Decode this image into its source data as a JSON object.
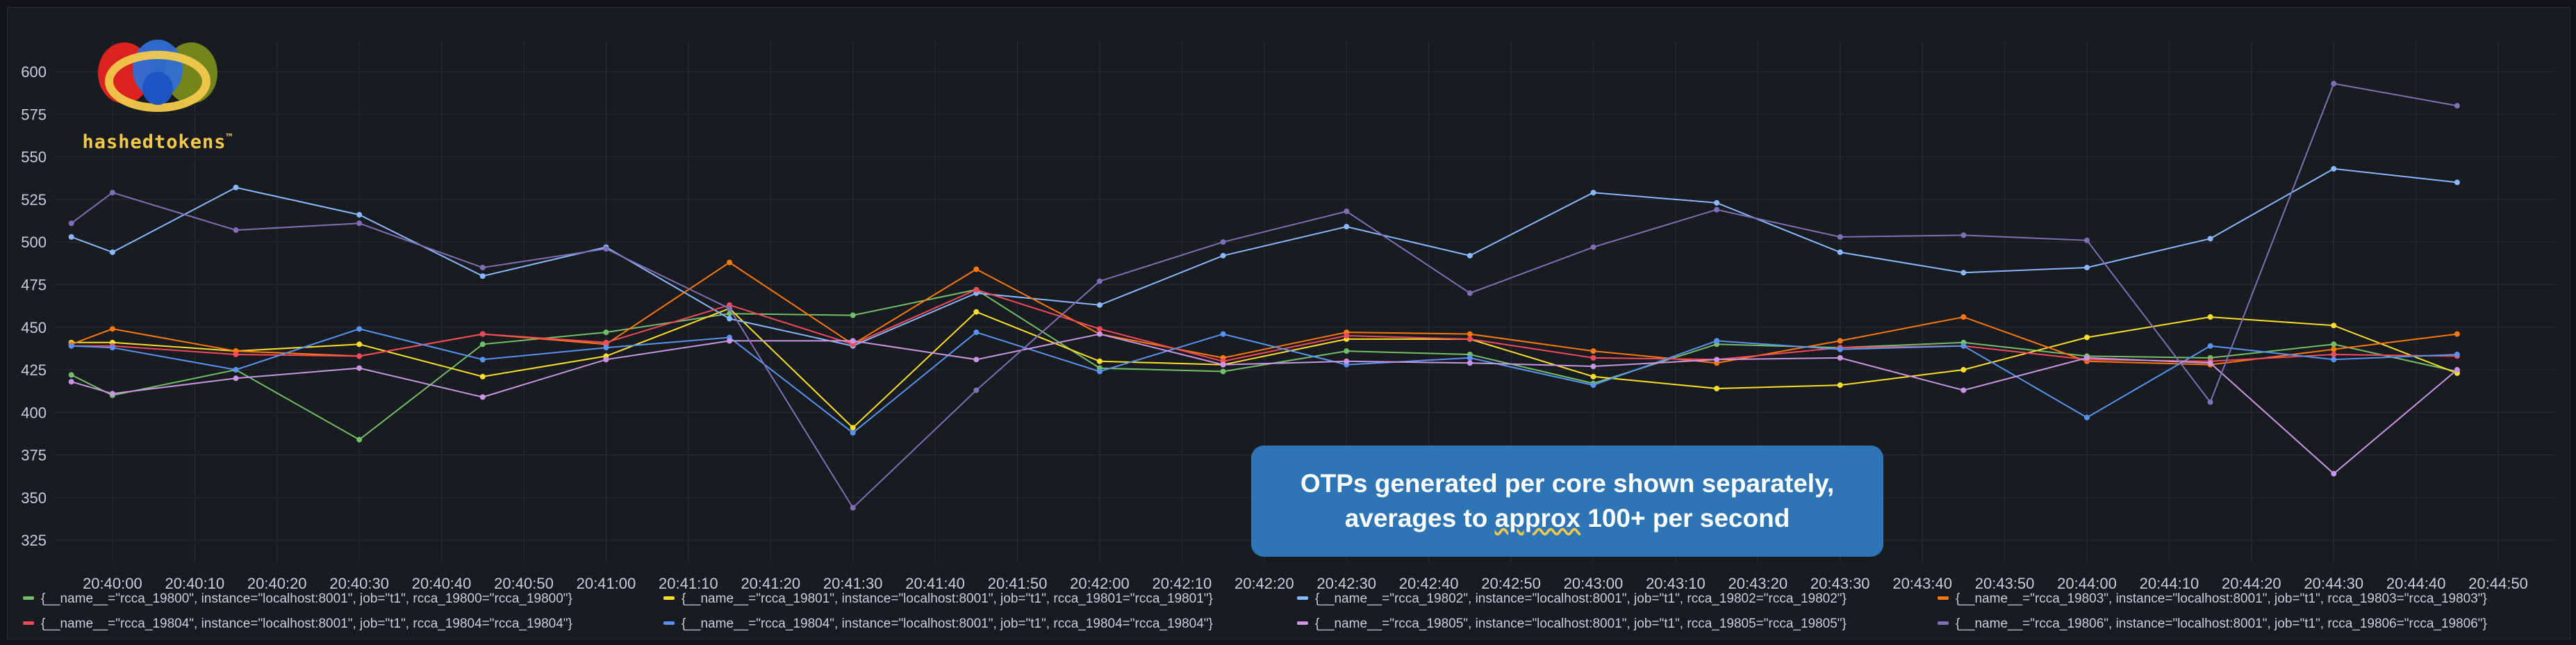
{
  "logo": {
    "text": "hashedtokens",
    "trademark": "™"
  },
  "callout": {
    "line1": "OTPs generated per core shown separately,",
    "line2_pre": "averages to ",
    "line2_mark": "approx",
    "line2_post": " 100+ per second"
  },
  "chart_data": {
    "type": "line",
    "title": "",
    "xlabel": "",
    "ylabel": "",
    "ylim": [
      312,
      618
    ],
    "y_ticks": [
      325,
      350,
      375,
      400,
      425,
      450,
      475,
      500,
      525,
      550,
      575,
      600
    ],
    "x_ticks": [
      "20:40:00",
      "20:40:10",
      "20:40:20",
      "20:40:30",
      "20:40:40",
      "20:40:50",
      "20:41:00",
      "20:41:10",
      "20:41:20",
      "20:41:30",
      "20:41:40",
      "20:41:50",
      "20:42:00",
      "20:42:10",
      "20:42:20",
      "20:42:30",
      "20:42:40",
      "20:42:50",
      "20:43:00",
      "20:43:10",
      "20:43:20",
      "20:43:30",
      "20:43:40",
      "20:43:50",
      "20:44:00",
      "20:44:10",
      "20:44:20",
      "20:44:30",
      "20:44:40",
      "20:44:50"
    ],
    "x_tick_seconds": [
      0,
      10,
      20,
      30,
      40,
      50,
      60,
      70,
      80,
      90,
      100,
      110,
      120,
      130,
      140,
      150,
      160,
      170,
      180,
      190,
      200,
      210,
      220,
      230,
      240,
      250,
      260,
      270,
      280,
      290
    ],
    "x_range_seconds": [
      -7,
      297
    ],
    "x": [
      -5,
      0,
      15,
      30,
      45,
      60,
      75,
      90,
      105,
      120,
      135,
      150,
      165,
      180,
      195,
      210,
      225,
      240,
      255,
      270,
      285
    ],
    "series": [
      {
        "name": "{__name__=\"rcca_19800\", instance=\"localhost:8001\", job=\"t1\", rcca_19800=\"rcca_19800\"}",
        "color": "#73bf69",
        "values": [
          422,
          410,
          425,
          384,
          440,
          447,
          458,
          457,
          472,
          426,
          424,
          436,
          434,
          417,
          440,
          438,
          441,
          433,
          432,
          440,
          424
        ]
      },
      {
        "name": "{__name__=\"rcca_19801\", instance=\"localhost:8001\", job=\"t1\", rcca_19801=\"rcca_19801\"}",
        "color": "#fade2a",
        "values": [
          441,
          441,
          436,
          440,
          421,
          433,
          461,
          391,
          459,
          430,
          428,
          443,
          443,
          421,
          414,
          416,
          425,
          444,
          456,
          451,
          423
        ]
      },
      {
        "name": "{__name__=\"rcca_19802\", instance=\"localhost:8001\", job=\"t1\", rcca_19802=\"rcca_19802\"}",
        "color": "#8ab8ff",
        "values": [
          503,
          494,
          532,
          516,
          480,
          497,
          455,
          439,
          470,
          463,
          492,
          509,
          492,
          529,
          523,
          494,
          482,
          485,
          502,
          543,
          535
        ]
      },
      {
        "name": "{__name__=\"rcca_19803\", instance=\"localhost:8001\", job=\"t1\", rcca_19803=\"rcca_19803\"}",
        "color": "#ff780a",
        "values": [
          440,
          449,
          436,
          433,
          446,
          440,
          488,
          440,
          484,
          446,
          432,
          447,
          446,
          436,
          429,
          442,
          456,
          430,
          428,
          437,
          446
        ]
      },
      {
        "name": "{__name__=\"rcca_19804\", instance=\"localhost:8001\", job=\"t1\", rcca_19804=\"rcca_19804\"}",
        "color": "#f2495c",
        "values": [
          439,
          439,
          434,
          433,
          446,
          441,
          463,
          440,
          472,
          449,
          430,
          445,
          443,
          432,
          431,
          438,
          439,
          431,
          430,
          434,
          433
        ]
      },
      {
        "name": "{__name__=\"rcca_19804\", instance=\"localhost:8001\", job=\"t1\", rcca_19804=\"rcca_19804\"}",
        "color": "#5794f2",
        "values": [
          439,
          438,
          425,
          449,
          431,
          438,
          444,
          388,
          447,
          424,
          446,
          428,
          432,
          416,
          442,
          437,
          439,
          397,
          439,
          431,
          434
        ]
      },
      {
        "name": "{__name__=\"rcca_19805\", instance=\"localhost:8001\", job=\"t1\", rcca_19805=\"rcca_19805\"}",
        "color": "#ca95e5",
        "values": [
          418,
          411,
          420,
          426,
          409,
          431,
          442,
          442,
          431,
          446,
          428,
          430,
          429,
          427,
          431,
          432,
          413,
          432,
          429,
          364,
          425
        ]
      },
      {
        "name": "{__name__=\"rcca_19806\", instance=\"localhost:8001\", job=\"t1\", rcca_19806=\"rcca_19806\"}",
        "color": "#806eb7",
        "values": [
          511,
          529,
          507,
          511,
          485,
          496,
          461,
          344,
          413,
          477,
          500,
          518,
          470,
          497,
          519,
          503,
          504,
          501,
          406,
          593,
          580
        ]
      }
    ]
  }
}
